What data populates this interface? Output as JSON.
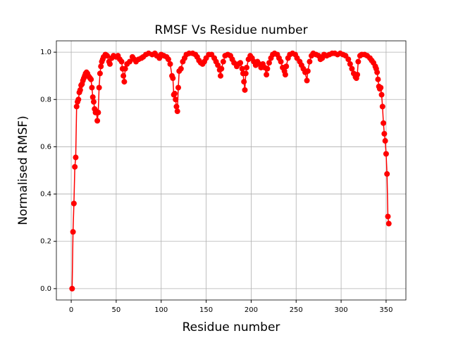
{
  "chart_data": {
    "type": "line",
    "title": "RMSF Vs Residue number",
    "x_label": "Residue number",
    "y_label": "Normalised RMSF)",
    "x": [
      1,
      2,
      3,
      4,
      5,
      6,
      7,
      8,
      9,
      10,
      11,
      12,
      13,
      14,
      15,
      16,
      17,
      18,
      19,
      20,
      21,
      22,
      23,
      24,
      25,
      26,
      27,
      28,
      29,
      30,
      31,
      32,
      33,
      34,
      35,
      36,
      38,
      40,
      42,
      43,
      45,
      47,
      50,
      52,
      54,
      56,
      57,
      58,
      59,
      60,
      62,
      65,
      68,
      70,
      72,
      75,
      78,
      80,
      83,
      86,
      90,
      93,
      95,
      98,
      100,
      103,
      106,
      108,
      110,
      112,
      113,
      114,
      115,
      116,
      117,
      118,
      119,
      120,
      122,
      124,
      126,
      128,
      131,
      135,
      138,
      140,
      142,
      144,
      146,
      148,
      150,
      153,
      156,
      159,
      161,
      163,
      165,
      166,
      167,
      169,
      171,
      174,
      177,
      179,
      181,
      184,
      186,
      188,
      190,
      191,
      192,
      193,
      194,
      195,
      197,
      199,
      201,
      203,
      205,
      207,
      209,
      211,
      213,
      215,
      217,
      218,
      220,
      222,
      224,
      226,
      229,
      231,
      233,
      235,
      237,
      238,
      239,
      241,
      243,
      246,
      249,
      251,
      254,
      256,
      258,
      260,
      262,
      263,
      265,
      267,
      269,
      272,
      275,
      277,
      279,
      281,
      284,
      287,
      290,
      293,
      296,
      299,
      302,
      305,
      308,
      310,
      312,
      314,
      316,
      317,
      318,
      319,
      321,
      323,
      326,
      329,
      332,
      334,
      336,
      338,
      339,
      340,
      341,
      342,
      343,
      344,
      345,
      346,
      347,
      348,
      349,
      350,
      351,
      352,
      353
    ],
    "series": [
      {
        "name": "RMSF",
        "color": "#ff0000",
        "values": [
          0,
          0.24,
          0.36,
          0.515,
          0.555,
          0.77,
          0.79,
          0.8,
          0.83,
          0.84,
          0.86,
          0.865,
          0.88,
          0.89,
          0.9,
          0.91,
          0.915,
          0.91,
          0.9,
          0.895,
          0.89,
          0.885,
          0.85,
          0.81,
          0.79,
          0.76,
          0.745,
          0.75,
          0.71,
          0.745,
          0.85,
          0.91,
          0.94,
          0.96,
          0.97,
          0.98,
          0.99,
          0.985,
          0.96,
          0.95,
          0.975,
          0.985,
          0.98,
          0.985,
          0.97,
          0.96,
          0.93,
          0.9,
          0.875,
          0.93,
          0.95,
          0.96,
          0.98,
          0.97,
          0.96,
          0.97,
          0.975,
          0.98,
          0.99,
          0.995,
          0.99,
          0.995,
          0.985,
          0.975,
          0.99,
          0.985,
          0.98,
          0.97,
          0.95,
          0.9,
          0.89,
          0.82,
          0.825,
          0.8,
          0.77,
          0.75,
          0.85,
          0.92,
          0.93,
          0.96,
          0.975,
          0.99,
          0.995,
          0.995,
          0.99,
          0.98,
          0.965,
          0.955,
          0.95,
          0.96,
          0.975,
          0.99,
          0.99,
          0.975,
          0.96,
          0.945,
          0.925,
          0.9,
          0.93,
          0.96,
          0.985,
          0.99,
          0.985,
          0.97,
          0.955,
          0.94,
          0.95,
          0.955,
          0.93,
          0.91,
          0.875,
          0.84,
          0.91,
          0.935,
          0.97,
          0.985,
          0.975,
          0.96,
          0.945,
          0.96,
          0.95,
          0.935,
          0.95,
          0.935,
          0.905,
          0.93,
          0.955,
          0.975,
          0.99,
          0.995,
          0.99,
          0.975,
          0.96,
          0.935,
          0.92,
          0.905,
          0.94,
          0.975,
          0.99,
          0.995,
          0.99,
          0.975,
          0.96,
          0.945,
          0.93,
          0.915,
          0.88,
          0.92,
          0.96,
          0.985,
          0.995,
          0.99,
          0.985,
          0.97,
          0.975,
          0.99,
          0.985,
          0.99,
          0.995,
          0.995,
          0.99,
          0.995,
          0.99,
          0.985,
          0.97,
          0.95,
          0.93,
          0.91,
          0.895,
          0.89,
          0.905,
          0.96,
          0.985,
          0.99,
          0.99,
          0.985,
          0.975,
          0.965,
          0.955,
          0.94,
          0.93,
          0.915,
          0.885,
          0.855,
          0.845,
          0.85,
          0.82,
          0.77,
          0.7,
          0.655,
          0.625,
          0.57,
          0.485,
          0.305,
          0.275
        ]
      }
    ],
    "xlim": [
      -16.5,
      372
    ],
    "ylim": [
      -0.048,
      1.048
    ],
    "xticks": [
      0,
      50,
      100,
      150,
      200,
      250,
      300,
      350
    ],
    "yticks": [
      {
        "value": 0,
        "label": "0.0"
      },
      {
        "value": 0.2,
        "label": "0.2"
      },
      {
        "value": 0.4,
        "label": "0.4"
      },
      {
        "value": 0.6,
        "label": "0.6"
      },
      {
        "value": 0.8,
        "label": "0.8"
      },
      {
        "value": 1,
        "label": "1.0"
      }
    ],
    "grid": true
  }
}
